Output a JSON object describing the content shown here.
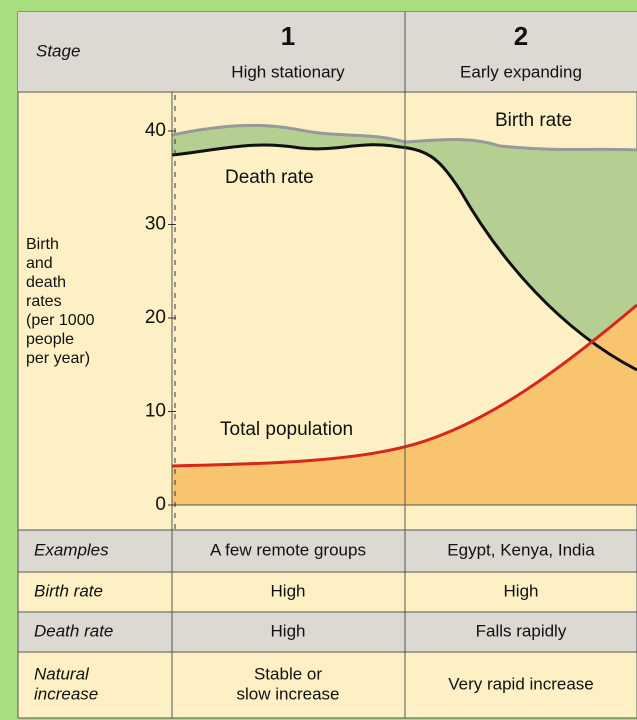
{
  "header": {
    "stage": "Stage",
    "stages": [
      {
        "number": "1",
        "name": "High stationary"
      },
      {
        "number": "2",
        "name": "Early expanding"
      }
    ]
  },
  "axis": {
    "label": [
      "Birth",
      "and",
      "death",
      "rates",
      "(per 1000",
      "people",
      "per year)"
    ],
    "ylim": [
      0,
      40
    ],
    "ticks": [
      0,
      10,
      20,
      30,
      40
    ]
  },
  "curves": {
    "birth": "Birth rate",
    "death": "Death rate",
    "population": "Total population"
  },
  "table": {
    "rows": [
      {
        "label": [
          "Examples"
        ],
        "cells": [
          [
            "A few remote groups"
          ],
          [
            "Egypt, Kenya, India"
          ]
        ]
      },
      {
        "label": [
          "Birth rate"
        ],
        "cells": [
          [
            "High"
          ],
          [
            "High"
          ]
        ]
      },
      {
        "label": [
          "Death rate"
        ],
        "cells": [
          [
            "High"
          ],
          [
            "Falls rapidly"
          ]
        ]
      },
      {
        "label": [
          "Natural",
          "increase"
        ],
        "cells": [
          [
            "Stable or",
            "slow increase"
          ],
          [
            "Very rapid increase"
          ]
        ]
      }
    ]
  }
}
